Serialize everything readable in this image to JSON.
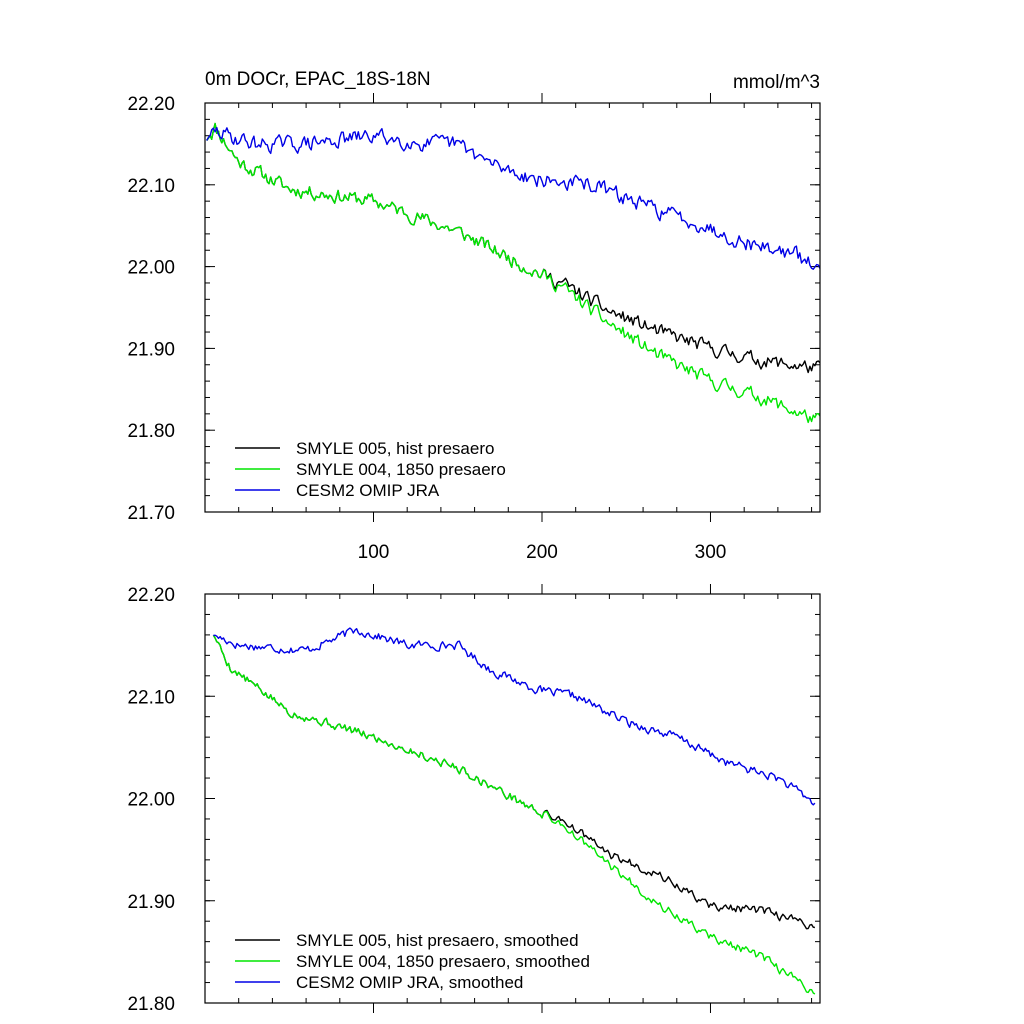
{
  "chart_data": [
    {
      "type": "line",
      "title": "0m DOCr, EPAC_18S-18N",
      "units": "mmol/m^3",
      "xlim": [
        0,
        365
      ],
      "ylim": [
        21.7,
        22.2
      ],
      "xticks": [
        100,
        200,
        300
      ],
      "xtick_labels": [
        "100",
        "200",
        "300"
      ],
      "yticks": [
        21.7,
        21.8,
        21.9,
        22.0,
        22.1,
        22.2
      ],
      "ytick_labels": [
        "21.70",
        "21.80",
        "21.90",
        "22.00",
        "22.10",
        "22.20"
      ],
      "legend_position": "bottom-left",
      "series": [
        {
          "name": "SMYLE 005, hist presaero",
          "color": "#000000",
          "noise": 0.01,
          "seed": 11,
          "anchors": [
            [
              1,
              22.155
            ],
            [
              6,
              22.17
            ],
            [
              20,
              22.128
            ],
            [
              50,
              22.095
            ],
            [
              100,
              22.08
            ],
            [
              150,
              22.043
            ],
            [
              200,
              21.99
            ],
            [
              212,
              21.98
            ],
            [
              240,
              21.945
            ],
            [
              270,
              21.92
            ],
            [
              300,
              21.9
            ],
            [
              330,
              21.885
            ],
            [
              365,
              21.875
            ]
          ]
        },
        {
          "name": "SMYLE 004, 1850 presaero",
          "color": "#00e600",
          "noise": 0.01,
          "seed": 11,
          "anchors": [
            [
              1,
              22.155
            ],
            [
              6,
              22.17
            ],
            [
              20,
              22.128
            ],
            [
              50,
              22.095
            ],
            [
              100,
              22.08
            ],
            [
              150,
              22.043
            ],
            [
              200,
              21.99
            ],
            [
              212,
              21.975
            ],
            [
              240,
              21.93
            ],
            [
              270,
              21.89
            ],
            [
              300,
              21.86
            ],
            [
              330,
              21.84
            ],
            [
              365,
              21.81
            ]
          ]
        },
        {
          "name": "CESM2 OMIP JRA",
          "color": "#0000e6",
          "noise": 0.011,
          "seed": 29,
          "anchors": [
            [
              1,
              22.155
            ],
            [
              6,
              22.165
            ],
            [
              30,
              22.15
            ],
            [
              60,
              22.15
            ],
            [
              100,
              22.16
            ],
            [
              130,
              22.15
            ],
            [
              150,
              22.15
            ],
            [
              170,
              22.125
            ],
            [
              200,
              22.105
            ],
            [
              230,
              22.1
            ],
            [
              260,
              22.075
            ],
            [
              290,
              22.055
            ],
            [
              320,
              22.03
            ],
            [
              350,
              22.015
            ],
            [
              365,
              21.995
            ]
          ]
        }
      ]
    },
    {
      "type": "line",
      "title": "",
      "units": "",
      "xlim": [
        0,
        365
      ],
      "ylim": [
        21.8,
        22.2
      ],
      "xticks": [
        100,
        200,
        300
      ],
      "xtick_labels": [],
      "yticks": [
        21.8,
        21.9,
        22.0,
        22.1,
        22.2
      ],
      "ytick_labels": [
        "21.80",
        "21.90",
        "22.00",
        "22.10",
        "22.20"
      ],
      "legend_position": "bottom-left",
      "series": [
        {
          "name": "SMYLE 005, hist presaero, smoothed",
          "color": "#000000",
          "noise": 0.005,
          "seed": 5,
          "x_start": 5,
          "x_end": 362,
          "anchors": [
            [
              5,
              22.16
            ],
            [
              15,
              22.128
            ],
            [
              50,
              22.085
            ],
            [
              100,
              22.06
            ],
            [
              150,
              22.03
            ],
            [
              200,
              21.985
            ],
            [
              212,
              21.98
            ],
            [
              240,
              21.945
            ],
            [
              270,
              21.925
            ],
            [
              300,
              21.895
            ],
            [
              330,
              21.89
            ],
            [
              362,
              21.875
            ]
          ]
        },
        {
          "name": "SMYLE 004, 1850 presaero, smoothed",
          "color": "#00e600",
          "noise": 0.005,
          "seed": 5,
          "x_start": 5,
          "x_end": 362,
          "anchors": [
            [
              5,
              22.16
            ],
            [
              15,
              22.128
            ],
            [
              50,
              22.085
            ],
            [
              100,
              22.06
            ],
            [
              150,
              22.03
            ],
            [
              200,
              21.985
            ],
            [
              212,
              21.975
            ],
            [
              240,
              21.935
            ],
            [
              270,
              21.895
            ],
            [
              300,
              21.865
            ],
            [
              330,
              21.845
            ],
            [
              362,
              21.81
            ]
          ]
        },
        {
          "name": "CESM2 OMIP JRA, smoothed",
          "color": "#0000e6",
          "noise": 0.005,
          "seed": 17,
          "x_start": 5,
          "x_end": 362,
          "anchors": [
            [
              5,
              22.16
            ],
            [
              20,
              22.15
            ],
            [
              60,
              22.145
            ],
            [
              90,
              22.165
            ],
            [
              120,
              22.15
            ],
            [
              150,
              22.15
            ],
            [
              170,
              22.125
            ],
            [
              200,
              22.105
            ],
            [
              220,
              22.1
            ],
            [
              250,
              22.075
            ],
            [
              280,
              22.06
            ],
            [
              310,
              22.035
            ],
            [
              340,
              22.02
            ],
            [
              362,
              21.995
            ]
          ]
        }
      ]
    }
  ]
}
